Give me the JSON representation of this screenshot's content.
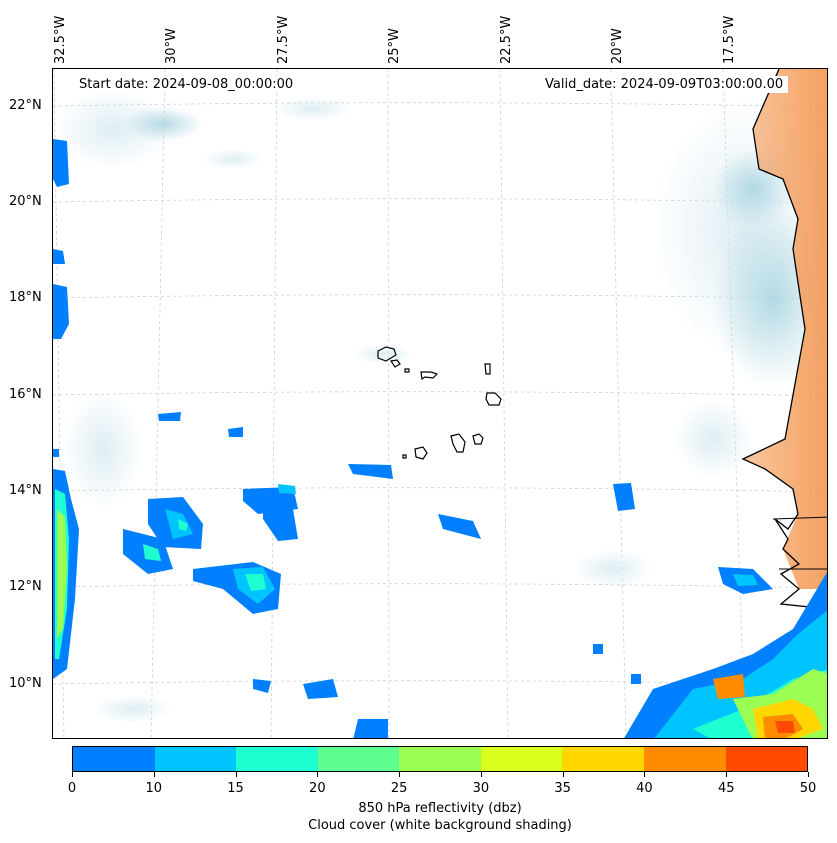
{
  "header": {
    "start_date": "Start date: 2024-09-08_00:00:00",
    "valid_date": "Valid_date: 2024-09-09T03:00:00.00"
  },
  "map": {
    "lon_labels": [
      "32.5°W",
      "30°W",
      "27.5°W",
      "25°W",
      "22.5°W",
      "20°W",
      "17.5°W"
    ],
    "lat_labels": [
      "22°N",
      "20°N",
      "18°N",
      "16°N",
      "14°N",
      "12°N",
      "10°N"
    ],
    "colors": {
      "cloud_cover": "#9fcfdc",
      "land_shading": "#f4a060",
      "coastline": "#000000",
      "gridline": "#c8c8c8"
    }
  },
  "colorbar": {
    "ticks": [
      "0",
      "10",
      "15",
      "20",
      "25",
      "30",
      "35",
      "40",
      "45",
      "50"
    ],
    "colors": [
      "#0080ff",
      "#00c4ff",
      "#1effd2",
      "#5eff8e",
      "#9aff52",
      "#d8ff1e",
      "#ffd700",
      "#ff8c00",
      "#ff4b00"
    ],
    "label": "850 hPa reflectivity (dbz)",
    "label2": "Cloud cover (white background shading)"
  }
}
